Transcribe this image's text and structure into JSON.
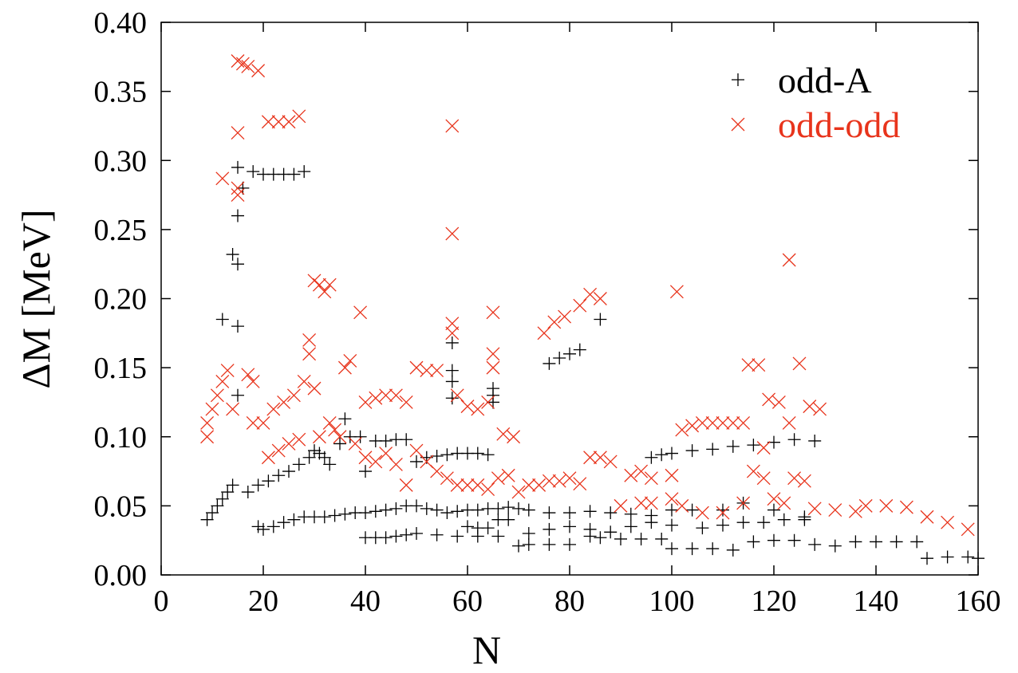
{
  "chart_data": {
    "type": "scatter",
    "xlabel": "N",
    "ylabel": "ΔM [MeV]",
    "xlim": [
      0,
      160
    ],
    "xticks": [
      0,
      20,
      40,
      60,
      80,
      100,
      120,
      140,
      160
    ],
    "ylim": [
      0,
      0.4
    ],
    "yticks": [
      {
        "value": 0,
        "label": "0.00"
      },
      {
        "value": 0.05,
        "label": "0.05"
      },
      {
        "value": 0.1,
        "label": "0.10"
      },
      {
        "value": 0.15,
        "label": "0.15"
      },
      {
        "value": 0.2,
        "label": "0.20"
      },
      {
        "value": 0.25,
        "label": "0.25"
      },
      {
        "value": 0.3,
        "label": "0.30"
      },
      {
        "value": 0.35,
        "label": "0.35"
      },
      {
        "value": 0.4,
        "label": "0.40"
      }
    ],
    "legend": "upper right",
    "series": [
      {
        "name": "odd-A",
        "color": "#000000",
        "marker": "plus",
        "x": [
          9,
          10,
          11,
          12,
          12,
          13,
          14,
          14,
          15,
          15,
          15,
          15,
          15,
          16,
          17,
          18,
          19,
          20,
          21,
          22,
          23,
          24,
          25,
          26,
          27,
          28,
          29,
          30,
          31,
          32,
          33,
          35,
          36,
          37,
          39,
          40,
          42,
          44,
          46,
          48,
          50,
          52,
          54,
          56,
          57,
          57,
          57,
          57,
          58,
          60,
          62,
          64,
          65,
          65,
          65,
          76,
          78,
          80,
          82,
          86,
          96,
          98,
          100,
          104,
          108,
          112,
          116,
          120,
          124,
          128,
          19,
          20,
          22,
          24,
          26,
          28,
          30,
          32,
          34,
          36,
          38,
          40,
          42,
          44,
          46,
          48,
          50,
          52,
          54,
          56,
          58,
          60,
          62,
          64,
          66,
          68,
          70,
          72,
          76,
          80,
          84,
          88,
          92,
          96,
          100,
          104,
          110,
          114,
          120,
          126,
          40,
          42,
          44,
          46,
          48,
          50,
          54,
          58,
          62,
          66,
          70,
          72,
          76,
          80,
          84,
          86,
          90,
          94,
          98,
          100,
          104,
          108,
          112,
          116,
          120,
          124,
          128,
          132,
          136,
          140,
          144,
          148,
          150,
          154,
          158,
          160,
          60,
          62,
          64,
          66,
          68,
          72,
          76,
          80,
          84,
          88,
          92,
          96,
          100,
          106,
          110,
          114,
          118,
          122,
          126
        ],
        "values": [
          0.04,
          0.045,
          0.05,
          0.055,
          0.185,
          0.06,
          0.065,
          0.232,
          0.225,
          0.26,
          0.295,
          0.13,
          0.18,
          0.28,
          0.06,
          0.292,
          0.065,
          0.29,
          0.068,
          0.29,
          0.072,
          0.29,
          0.075,
          0.29,
          0.08,
          0.292,
          0.085,
          0.09,
          0.088,
          0.085,
          0.08,
          0.095,
          0.113,
          0.1,
          0.1,
          0.075,
          0.097,
          0.097,
          0.098,
          0.098,
          0.082,
          0.085,
          0.086,
          0.087,
          0.168,
          0.148,
          0.14,
          0.128,
          0.088,
          0.088,
          0.088,
          0.087,
          0.135,
          0.13,
          0.125,
          0.153,
          0.157,
          0.16,
          0.163,
          0.185,
          0.085,
          0.087,
          0.088,
          0.09,
          0.091,
          0.093,
          0.094,
          0.096,
          0.098,
          0.097,
          0.035,
          0.033,
          0.035,
          0.038,
          0.04,
          0.042,
          0.042,
          0.042,
          0.043,
          0.044,
          0.045,
          0.045,
          0.046,
          0.047,
          0.048,
          0.05,
          0.05,
          0.048,
          0.047,
          0.045,
          0.046,
          0.047,
          0.047,
          0.048,
          0.048,
          0.049,
          0.048,
          0.047,
          0.045,
          0.045,
          0.046,
          0.045,
          0.044,
          0.043,
          0.047,
          0.047,
          0.047,
          0.052,
          0.047,
          0.042,
          0.027,
          0.027,
          0.027,
          0.028,
          0.029,
          0.03,
          0.029,
          0.028,
          0.028,
          0.028,
          0.021,
          0.022,
          0.022,
          0.022,
          0.028,
          0.027,
          0.026,
          0.026,
          0.026,
          0.019,
          0.019,
          0.019,
          0.018,
          0.024,
          0.025,
          0.025,
          0.022,
          0.021,
          0.024,
          0.024,
          0.024,
          0.024,
          0.012,
          0.013,
          0.013,
          0.012,
          0.035,
          0.034,
          0.034,
          0.04,
          0.04,
          0.03,
          0.033,
          0.035,
          0.033,
          0.031,
          0.035,
          0.038,
          0.036,
          0.034,
          0.036,
          0.038,
          0.038,
          0.04,
          0.04
        ]
      },
      {
        "name": "odd-odd",
        "color": "#e8341c",
        "marker": "cross",
        "x": [
          9,
          9,
          10,
          11,
          12,
          12,
          13,
          14,
          15,
          15,
          15,
          15,
          16,
          17,
          17,
          18,
          19,
          18,
          20,
          21,
          22,
          23,
          24,
          25,
          26,
          27,
          28,
          29,
          29,
          30,
          31,
          32,
          33,
          30,
          21,
          23,
          25,
          27,
          31,
          33,
          34,
          35,
          36,
          37,
          39,
          38,
          40,
          42,
          44,
          46,
          48,
          50,
          52,
          54,
          57,
          57,
          57,
          57,
          58,
          60,
          62,
          64,
          65,
          65,
          65,
          67,
          69,
          40,
          42,
          44,
          46,
          48,
          50,
          52,
          54,
          56,
          58,
          60,
          62,
          64,
          66,
          68,
          70,
          72,
          74,
          76,
          78,
          80,
          82,
          75,
          77,
          79,
          82,
          84,
          86,
          84,
          86,
          88,
          90,
          92,
          94,
          96,
          100,
          101,
          102,
          104,
          106,
          108,
          110,
          112,
          114,
          115,
          117,
          119,
          121,
          123,
          125,
          127,
          129,
          102,
          106,
          110,
          114,
          116,
          118,
          120,
          122,
          124,
          126,
          128,
          132,
          136,
          138,
          142,
          146,
          150,
          154,
          158,
          96,
          100,
          94,
          118,
          123
        ],
        "values": [
          0.1,
          0.11,
          0.12,
          0.13,
          0.14,
          0.287,
          0.148,
          0.12,
          0.32,
          0.372,
          0.28,
          0.275,
          0.37,
          0.145,
          0.368,
          0.14,
          0.365,
          0.11,
          0.11,
          0.328,
          0.12,
          0.328,
          0.125,
          0.328,
          0.13,
          0.332,
          0.14,
          0.17,
          0.16,
          0.213,
          0.21,
          0.205,
          0.21,
          0.135,
          0.085,
          0.09,
          0.095,
          0.098,
          0.1,
          0.11,
          0.105,
          0.1,
          0.15,
          0.155,
          0.19,
          0.095,
          0.125,
          0.128,
          0.13,
          0.13,
          0.125,
          0.15,
          0.148,
          0.148,
          0.325,
          0.247,
          0.182,
          0.175,
          0.13,
          0.122,
          0.12,
          0.125,
          0.19,
          0.16,
          0.15,
          0.102,
          0.1,
          0.085,
          0.082,
          0.088,
          0.08,
          0.065,
          0.09,
          0.082,
          0.075,
          0.07,
          0.065,
          0.065,
          0.065,
          0.062,
          0.07,
          0.072,
          0.06,
          0.065,
          0.065,
          0.068,
          0.068,
          0.07,
          0.066,
          0.175,
          0.183,
          0.187,
          0.195,
          0.203,
          0.2,
          0.085,
          0.085,
          0.082,
          0.05,
          0.072,
          0.075,
          0.07,
          0.072,
          0.205,
          0.105,
          0.108,
          0.11,
          0.11,
          0.11,
          0.11,
          0.11,
          0.152,
          0.152,
          0.127,
          0.125,
          0.228,
          0.153,
          0.122,
          0.12,
          0.05,
          0.045,
          0.045,
          0.052,
          0.075,
          0.07,
          0.055,
          0.052,
          0.07,
          0.068,
          0.048,
          0.047,
          0.046,
          0.05,
          0.05,
          0.049,
          0.042,
          0.038,
          0.033,
          0.052,
          0.055,
          0.052,
          0.092,
          0.11
        ]
      }
    ]
  }
}
